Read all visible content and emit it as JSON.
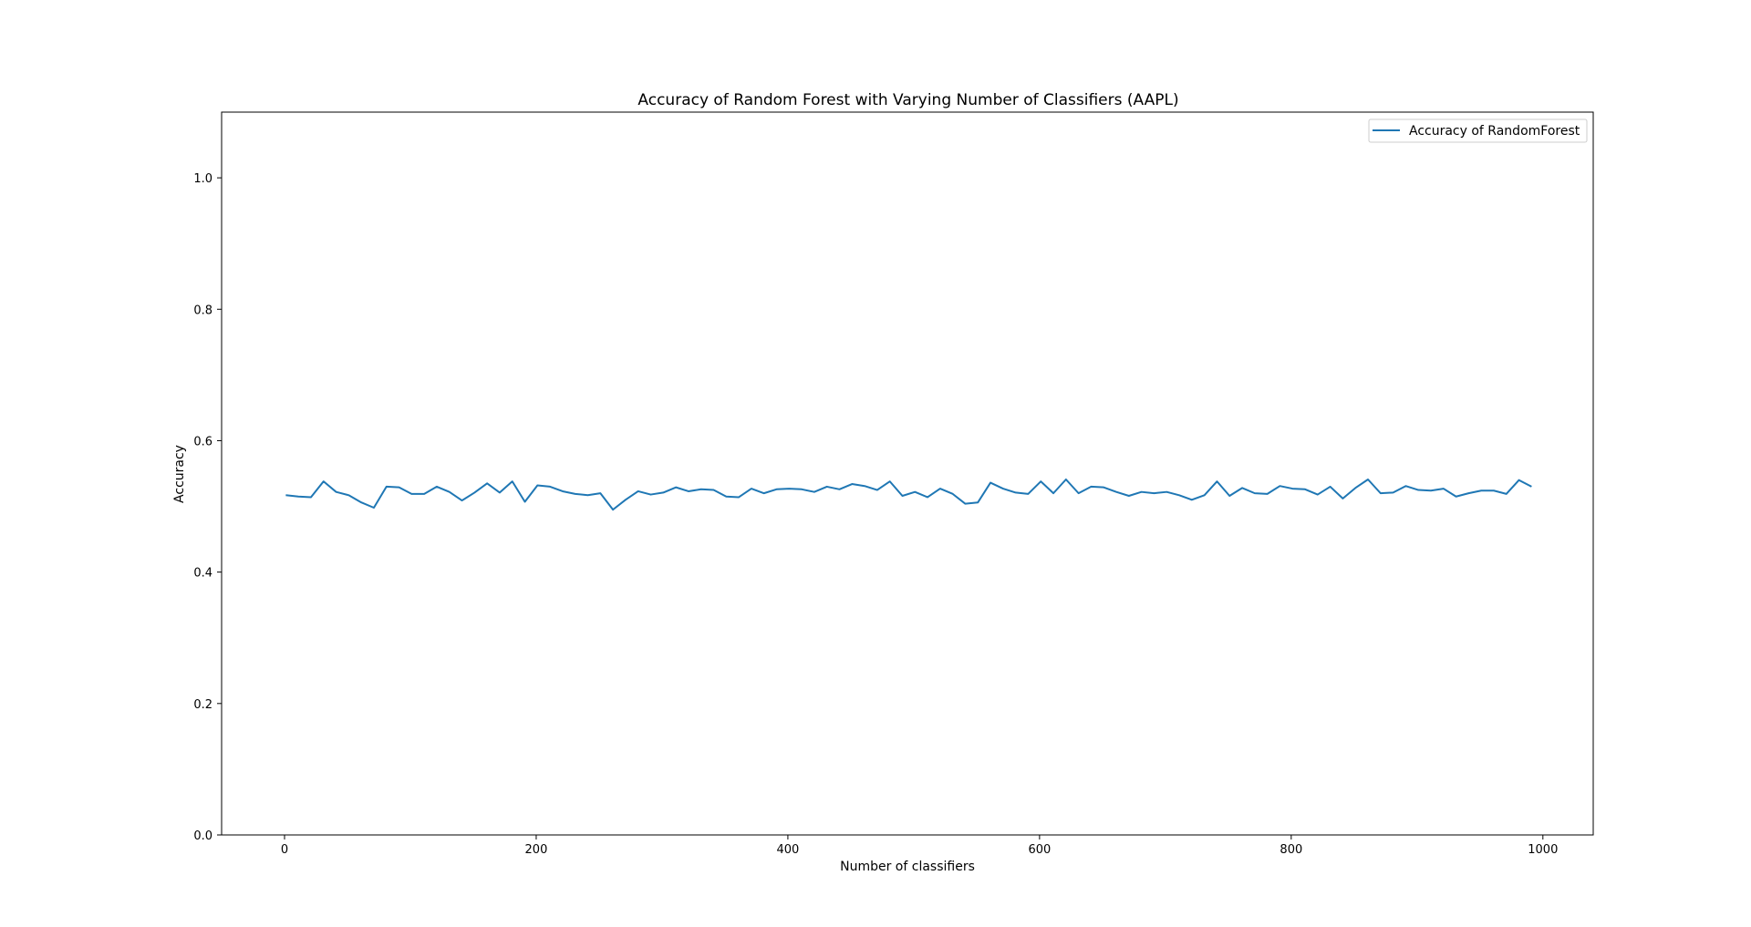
{
  "chart_data": {
    "type": "line",
    "title": "Accuracy of Random Forest with Varying Number of Classifiers (AAPL)",
    "xlabel": "Number of classifiers",
    "ylabel": "Accuracy",
    "xlim": [
      -50,
      1040
    ],
    "ylim": [
      0.0,
      1.1
    ],
    "xticks": [
      0,
      200,
      400,
      600,
      800,
      1000
    ],
    "yticks": [
      0.0,
      0.2,
      0.4,
      0.6,
      0.8,
      1.0
    ],
    "xtick_labels": [
      "0",
      "200",
      "400",
      "600",
      "800",
      "1000"
    ],
    "ytick_labels": [
      "0.0",
      "0.2",
      "0.4",
      "0.6",
      "0.8",
      "1.0"
    ],
    "grid": false,
    "legend": {
      "position": "top-right",
      "entries": [
        "Accuracy of RandomForest"
      ]
    },
    "series": [
      {
        "name": "Accuracy of RandomForest",
        "color": "#1f77b4",
        "x": [
          1,
          11,
          21,
          31,
          41,
          51,
          61,
          71,
          81,
          91,
          101,
          111,
          121,
          131,
          141,
          151,
          161,
          171,
          181,
          191,
          201,
          211,
          221,
          231,
          241,
          251,
          261,
          271,
          281,
          291,
          301,
          311,
          321,
          331,
          341,
          351,
          361,
          371,
          381,
          391,
          401,
          411,
          421,
          431,
          441,
          451,
          461,
          471,
          481,
          491,
          501,
          511,
          521,
          531,
          541,
          551,
          561,
          571,
          581,
          591,
          601,
          611,
          621,
          631,
          641,
          651,
          661,
          671,
          681,
          691,
          701,
          711,
          721,
          731,
          741,
          751,
          761,
          771,
          781,
          791,
          801,
          811,
          821,
          831,
          841,
          851,
          861,
          871,
          881,
          891,
          901,
          911,
          921,
          931,
          941,
          951,
          961,
          971,
          981,
          991
        ],
        "y": [
          0.517,
          0.515,
          0.514,
          0.538,
          0.522,
          0.517,
          0.506,
          0.498,
          0.53,
          0.529,
          0.519,
          0.519,
          0.53,
          0.522,
          0.509,
          0.521,
          0.535,
          0.521,
          0.538,
          0.507,
          0.532,
          0.53,
          0.523,
          0.519,
          0.517,
          0.52,
          0.495,
          0.51,
          0.523,
          0.518,
          0.521,
          0.529,
          0.523,
          0.526,
          0.525,
          0.515,
          0.514,
          0.527,
          0.52,
          0.526,
          0.527,
          0.526,
          0.522,
          0.53,
          0.526,
          0.534,
          0.531,
          0.525,
          0.538,
          0.516,
          0.522,
          0.514,
          0.527,
          0.519,
          0.504,
          0.506,
          0.536,
          0.527,
          0.521,
          0.519,
          0.538,
          0.52,
          0.541,
          0.52,
          0.53,
          0.529,
          0.522,
          0.516,
          0.522,
          0.52,
          0.522,
          0.517,
          0.51,
          0.517,
          0.538,
          0.516,
          0.528,
          0.52,
          0.519,
          0.531,
          0.527,
          0.526,
          0.518,
          0.53,
          0.512,
          0.528,
          0.541,
          0.52,
          0.521,
          0.531,
          0.525,
          0.524,
          0.527,
          0.515,
          0.52,
          0.524,
          0.524,
          0.519,
          0.54,
          0.53
        ]
      }
    ]
  }
}
